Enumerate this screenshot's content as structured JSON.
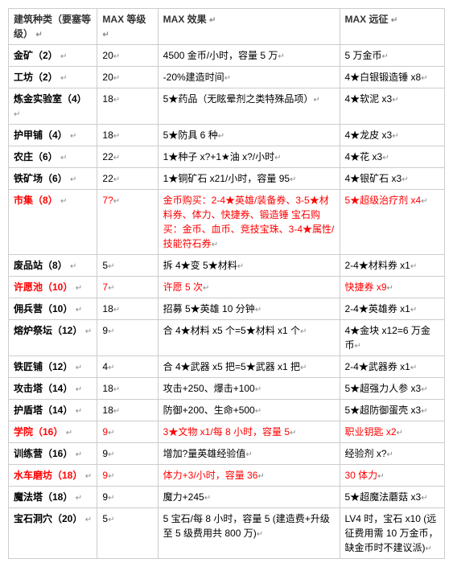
{
  "headers": {
    "col1": "建筑种类（要塞等级）",
    "col2": "MAX 等级",
    "col3": "MAX 效果",
    "col4": "MAX 远征"
  },
  "rows": [
    {
      "name": "金矿（2）",
      "level": "20",
      "effect": "4500 金币/小时，容量 5 万",
      "expedition": "5 万金币",
      "red": false
    },
    {
      "name": "工坊（2）",
      "level": "20",
      "effect": "-20%建造时间",
      "expedition": "4★白银锻造锤 x8",
      "red": false
    },
    {
      "name": "炼金实验室（4）",
      "level": "18",
      "effect": "5★药品（无眩晕剂之类特殊品项）",
      "expedition": "4★软泥 x3",
      "red": false
    },
    {
      "name": "护甲铺（4）",
      "level": "18",
      "effect": "5★防具 6 种",
      "expedition": "4★龙皮 x3",
      "red": false
    },
    {
      "name": "农庄（6）",
      "level": "22",
      "effect": "1★种子 x?+1★油 x?/小时",
      "expedition": "4★花 x3",
      "red": false
    },
    {
      "name": "铁矿场（6）",
      "level": "22",
      "effect": "1★铜矿石 x21/小时，容量 95",
      "expedition": "4★银矿石 x3",
      "red": false
    },
    {
      "name": "市集（8）",
      "level": "7?",
      "effect": "金币购买：2-4★英雄/装备券、3-5★材料券、体力、快捷券、锻造锤 宝石购买：金币、血币、竞技宝珠、3-4★属性/技能符石券",
      "expedition": "5★超级治疗剂 x4",
      "red": true
    },
    {
      "name": "废品站（8）",
      "level": "5",
      "effect": "拆 4★变 5★材料",
      "expedition": "2-4★材料券 x1",
      "red": false
    },
    {
      "name": "许愿池（10）",
      "level": "7",
      "effect": "许愿 5 次",
      "expedition": "快捷券 x9",
      "red": true
    },
    {
      "name": "佣兵营（10）",
      "level": "18",
      "effect": "招募 5★英雄 10 分钟",
      "expedition": "2-4★英雄券 x1",
      "red": false
    },
    {
      "name": "熔炉祭坛（12）",
      "level": "9",
      "effect": "合 4★材料 x5 个=5★材料 x1 个",
      "expedition": "4★金块 x12=6 万金币",
      "red": false
    },
    {
      "name": "铁匠铺（12）",
      "level": "4",
      "effect": "合 4★武器 x5 把=5★武器 x1 把",
      "expedition": "2-4★武器券 x1",
      "red": false
    },
    {
      "name": "攻击塔（14）",
      "level": "18",
      "effect": "攻击+250、爆击+100",
      "expedition": "5★超强力人参 x3",
      "red": false
    },
    {
      "name": "护盾塔（14）",
      "level": "18",
      "effect": "防御+200、生命+500",
      "expedition": "5★超防御蛋壳 x3",
      "red": false
    },
    {
      "name": "学院（16）",
      "level": "9",
      "effect": "3★文物 x1/每 8 小时，容量 5",
      "expedition": "职业钥匙 x2",
      "red": true
    },
    {
      "name": "训练营（16）",
      "level": "9",
      "effect": "增加?量英雄经验值",
      "expedition": "经验剂 x?",
      "red": false
    },
    {
      "name": "水车磨坊（18）",
      "level": "9",
      "effect": "体力+3/小时，容量 36",
      "expedition": "30 体力",
      "red": true
    },
    {
      "name": "魔法塔（18）",
      "level": "9",
      "effect": "魔力+245",
      "expedition": "5★超魔法蘑菇 x3",
      "red": false
    },
    {
      "name": "宝石洞穴（20）",
      "level": "5",
      "effect": "5 宝石/每 8 小时，容量 5 (建造费+升级至 5 级费用共 800 万)",
      "expedition": "LV4 时，宝石 x10 (远征费用需 10 万金币，缺金币时不建议派)",
      "red": false
    }
  ],
  "marker": "↵"
}
